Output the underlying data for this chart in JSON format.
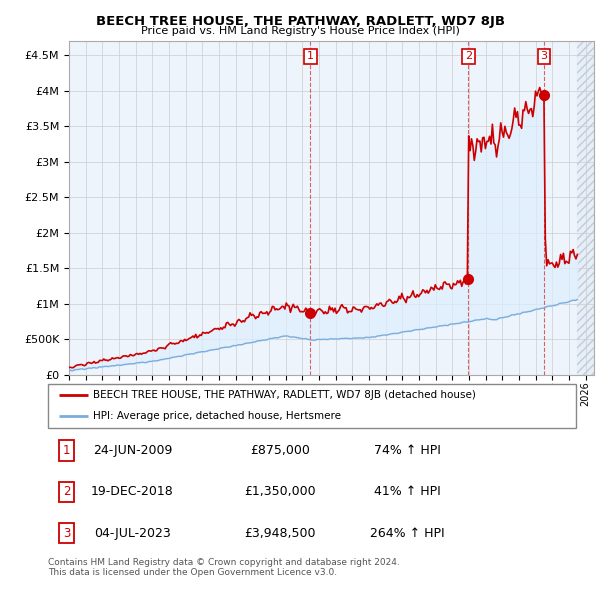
{
  "title": "BEECH TREE HOUSE, THE PATHWAY, RADLETT, WD7 8JB",
  "subtitle": "Price paid vs. HM Land Registry's House Price Index (HPI)",
  "ylim": [
    0,
    4700000
  ],
  "xlim_start": 1995.0,
  "xlim_end": 2026.5,
  "sale_dates": [
    2009.48,
    2018.96,
    2023.5
  ],
  "sale_prices": [
    875000,
    1350000,
    3948500
  ],
  "sale_labels": [
    "1",
    "2",
    "3"
  ],
  "legend_red": "BEECH TREE HOUSE, THE PATHWAY, RADLETT, WD7 8JB (detached house)",
  "legend_blue": "HPI: Average price, detached house, Hertsmere",
  "table_data": [
    [
      "1",
      "24-JUN-2009",
      "£875,000",
      "74% ↑ HPI"
    ],
    [
      "2",
      "19-DEC-2018",
      "£1,350,000",
      "41% ↑ HPI"
    ],
    [
      "3",
      "04-JUL-2023",
      "£3,948,500",
      "264% ↑ HPI"
    ]
  ],
  "footnote": "Contains HM Land Registry data © Crown copyright and database right 2024.\nThis data is licensed under the Open Government Licence v3.0.",
  "red_color": "#cc0000",
  "blue_color": "#7aaddc",
  "fill_color": "#ddeeff",
  "grid_color": "#cccccc",
  "hatch_color": "#bbccdd",
  "ytick_vals": [
    0,
    500000,
    1000000,
    1500000,
    2000000,
    2500000,
    3000000,
    3500000,
    4000000,
    4500000
  ],
  "hpi_end_cutoff": 2025.5
}
